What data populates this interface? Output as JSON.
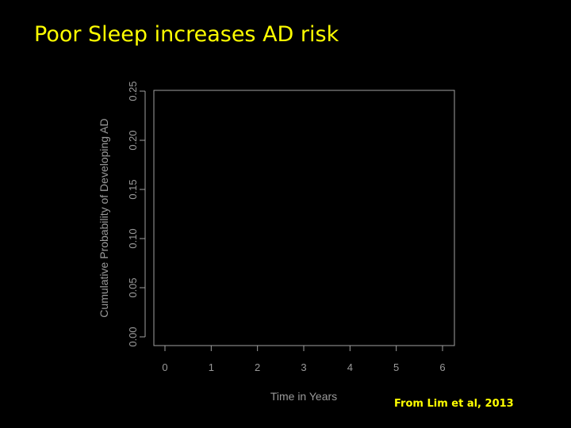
{
  "slide": {
    "title": "Poor Sleep increases AD risk",
    "citation": "From Lim et al, 2013"
  },
  "colors": {
    "background": "#000000",
    "text_accent": "#FFFF00",
    "axis": "#a0a0a0"
  },
  "chart_data": {
    "type": "line",
    "title": "",
    "xlabel": "Time in Years",
    "ylabel": "Cumulative Probability of Developing AD",
    "xlim": [
      0,
      6
    ],
    "ylim": [
      0,
      0.25
    ],
    "x_ticks": [
      "0",
      "1",
      "2",
      "3",
      "4",
      "5",
      "6"
    ],
    "y_ticks": [
      "0.00",
      "0.05",
      "0.10",
      "0.15",
      "0.20",
      "0.25"
    ],
    "series": [],
    "grid": false
  }
}
